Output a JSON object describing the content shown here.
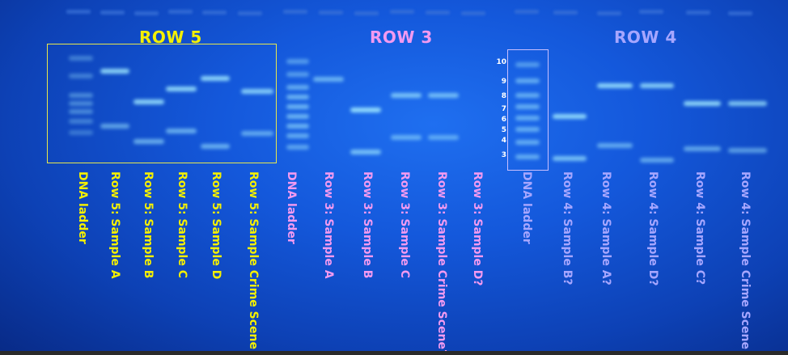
{
  "colors": {
    "row5": "#f4f000",
    "row3": "#f29af0",
    "row4": "#a6a6ff",
    "band": "#9fe8ff",
    "gel_background": "#1458db"
  },
  "row_titles": {
    "row5": "ROW 5",
    "row3": "ROW 3",
    "row4": "ROW 4"
  },
  "ladder_numbers": [
    "10",
    "9",
    "8",
    "7",
    "6",
    "5",
    "4",
    "3"
  ],
  "lanes": [
    {
      "label": "DNA ladder",
      "group": "row5"
    },
    {
      "label": "Row 5: Sample A",
      "group": "row5"
    },
    {
      "label": "Row 5: Sample B",
      "group": "row5"
    },
    {
      "label": "Row 5: Sample C",
      "group": "row5"
    },
    {
      "label": "Row 5: Sample D",
      "group": "row5"
    },
    {
      "label": "Row 5: Sample Crime Scene",
      "group": "row5"
    },
    {
      "label": "DNA ladder",
      "group": "row3"
    },
    {
      "label": "Row 3: Sample A",
      "group": "row3"
    },
    {
      "label": "Row 3: Sample B",
      "group": "row3"
    },
    {
      "label": "Row 3: Sample C",
      "group": "row3"
    },
    {
      "label": "Row 3: Sample Crime Scene?",
      "group": "row3"
    },
    {
      "label": "Row 3: Sample D?",
      "group": "row3"
    },
    {
      "label": "DNA ladder",
      "group": "row4"
    },
    {
      "label": "Row 4: Sample B?",
      "group": "row4"
    },
    {
      "label": "Row 4: Sample A?",
      "group": "row4"
    },
    {
      "label": "Row 4: Sample D?",
      "group": "row4"
    },
    {
      "label": "Row 4: Sample C?",
      "group": "row4"
    },
    {
      "label": "Row 4: Sample Crime Scene",
      "group": "row4"
    }
  ]
}
